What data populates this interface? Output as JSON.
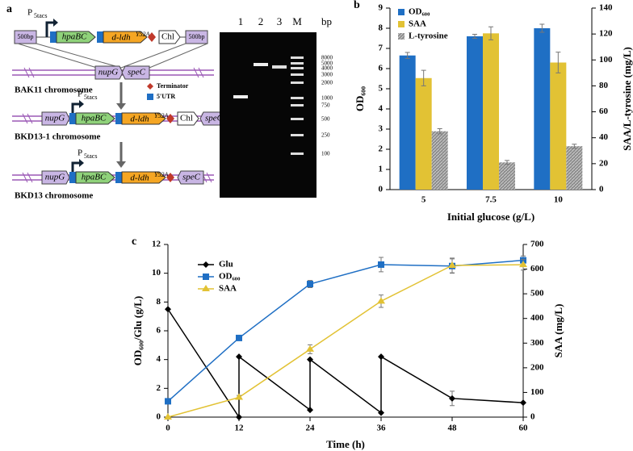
{
  "panel_a": {
    "label": "a",
    "promoter": {
      "main": "P",
      "sub": "5tacs"
    },
    "homology": "500bp",
    "genes": {
      "hpa": "hpaBC",
      "ldh": "d-ldh",
      "ldh_sup": "Y52A",
      "chl": "Chl",
      "nup": "nupG",
      "spe": "speC"
    },
    "strains": [
      "BAK11 chromosome",
      "BKD13-1 chromosome",
      "BKD13 chromosome"
    ],
    "legend": [
      "Terminator",
      "5'UTR"
    ],
    "gel": {
      "lanes": [
        "1",
        "2",
        "3",
        "M"
      ],
      "unit": "bp",
      "ladder": [
        "8000",
        "5000",
        "4000",
        "3000",
        "2000",
        "1000",
        "750",
        "500",
        "250",
        "100"
      ]
    }
  },
  "chart_data": [
    {
      "type": "bar",
      "label": "b",
      "xlabel": "Initial glucose (g/L)",
      "ylabel": "OD₆₀₀",
      "y2label": "SAA/L-tyrosine (mg/L)",
      "categories": [
        "5",
        "7.5",
        "10"
      ],
      "ylim": [
        0,
        9
      ],
      "yticks": [
        0,
        1,
        2,
        3,
        4,
        5,
        6,
        7,
        8,
        9
      ],
      "y2lim": [
        0,
        140
      ],
      "y2ticks": [
        0,
        20,
        40,
        60,
        80,
        100,
        120,
        140
      ],
      "series": [
        {
          "name": "OD₆₀₀",
          "color": "#1f6fc4",
          "values": [
            6.65,
            7.6,
            8.0
          ],
          "errors": [
            0.15,
            0.1,
            0.2
          ]
        },
        {
          "name": "SAA",
          "color": "#e2c234",
          "axis": "y2",
          "values": [
            86,
            120.5,
            98
          ],
          "errors": [
            6,
            5,
            8
          ]
        },
        {
          "name": "L-tyrosine",
          "color": "#8c8c8c",
          "axis": "y2",
          "values": [
            45,
            21,
            33.5
          ],
          "errors": [
            2,
            1.5,
            1.5
          ]
        }
      ]
    },
    {
      "type": "line",
      "label": "c",
      "xlabel": "Time (h)",
      "ylabel": "OD₆₀₀/Glu (g/L)",
      "y2label": "SAA (mg/L)",
      "xlim": [
        0,
        60
      ],
      "xticks": [
        0,
        12,
        24,
        36,
        48,
        60
      ],
      "ylim": [
        0,
        12
      ],
      "yticks": [
        0,
        2,
        4,
        6,
        8,
        10,
        12
      ],
      "y2lim": [
        0,
        700
      ],
      "y2ticks": [
        0,
        100,
        200,
        300,
        400,
        500,
        600,
        700
      ],
      "series": [
        {
          "name": "Glu",
          "color": "#000000",
          "marker": "diamond",
          "x": [
            0,
            12,
            12,
            24,
            24,
            36,
            36,
            48,
            60
          ],
          "values": [
            7.5,
            0,
            4.2,
            0.5,
            4.0,
            0.3,
            4.2,
            1.3,
            1.0
          ],
          "errors": [
            0,
            0,
            0,
            0,
            0,
            0,
            0,
            0.5,
            0
          ]
        },
        {
          "name": "OD₆₀₀",
          "color": "#1f6fc4",
          "marker": "square",
          "x": [
            0,
            12,
            24,
            36,
            48,
            60
          ],
          "values": [
            1.1,
            5.5,
            9.25,
            10.6,
            10.5,
            10.9
          ],
          "errors": [
            0,
            0,
            0.25,
            0.5,
            0.5,
            0.3
          ]
        },
        {
          "name": "SAA",
          "color": "#e2c234",
          "marker": "triangle",
          "axis": "y2",
          "x": [
            0,
            12,
            24,
            36,
            48,
            60
          ],
          "values": [
            0,
            80,
            275,
            470,
            615,
            618
          ],
          "errors": [
            0,
            8,
            18,
            25,
            30,
            22
          ]
        }
      ]
    }
  ]
}
